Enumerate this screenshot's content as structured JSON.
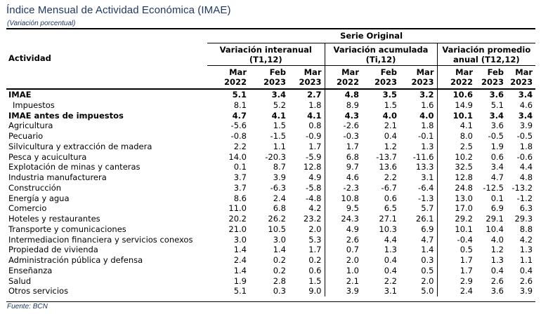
{
  "title": "Índice Mensual de Actividad Económica (IMAE)",
  "subtitle": "(Variación porcentual)",
  "source": "Fuente: BCN",
  "header": {
    "serie": "Serie Original",
    "actividad": "Actividad",
    "groups": [
      {
        "line1": "Variación interanual",
        "line2": "(T1,12)"
      },
      {
        "line1": "Variación acumulada",
        "line2": "(Ti,12)"
      },
      {
        "line1": "Variación promedio",
        "line2": "anual (T12,12)"
      }
    ],
    "periods": [
      {
        "m": "Mar",
        "y": "2022"
      },
      {
        "m": "Feb",
        "y": "2023"
      },
      {
        "m": "Mar",
        "y": "2023"
      },
      {
        "m": "Mar",
        "y": "2022"
      },
      {
        "m": "Feb",
        "y": "2023"
      },
      {
        "m": "Mar",
        "y": "2023"
      },
      {
        "m": "Mar",
        "y": "2022"
      },
      {
        "m": "Feb",
        "y": "2023"
      },
      {
        "m": "Mar",
        "y": "2023"
      }
    ]
  },
  "rows": [
    {
      "name": "IMAE",
      "bold": true,
      "indent": false,
      "values": [
        "5.1",
        "3.4",
        "2.7",
        "4.8",
        "3.5",
        "3.2",
        "10.6",
        "3.6",
        "3.4"
      ]
    },
    {
      "name": "Impuestos",
      "bold": false,
      "indent": true,
      "values": [
        "8.1",
        "5.2",
        "1.8",
        "8.9",
        "1.5",
        "1.6",
        "14.9",
        "5.1",
        "4.6"
      ]
    },
    {
      "name": "IMAE antes de impuestos",
      "bold": true,
      "indent": false,
      "values": [
        "4.7",
        "4.1",
        "4.1",
        "4.3",
        "4.0",
        "4.0",
        "10.1",
        "3.4",
        "3.4"
      ]
    },
    {
      "name": "Agricultura",
      "bold": false,
      "indent": false,
      "values": [
        "-5.6",
        "1.5",
        "0.8",
        "-2.6",
        "2.1",
        "1.8",
        "4.1",
        "3.6",
        "3.9"
      ]
    },
    {
      "name": "Pecuario",
      "bold": false,
      "indent": false,
      "values": [
        "-0.8",
        "-1.5",
        "-0.9",
        "-0.3",
        "0.4",
        "-0.1",
        "8.0",
        "-0.5",
        "-0.5"
      ]
    },
    {
      "name": "Silvicultura y extracción de madera",
      "bold": false,
      "indent": false,
      "values": [
        "2.2",
        "1.1",
        "1.7",
        "1.7",
        "1.2",
        "1.3",
        "2.5",
        "1.9",
        "1.8"
      ]
    },
    {
      "name": "Pesca y acuicultura",
      "bold": false,
      "indent": false,
      "values": [
        "14.0",
        "-20.3",
        "-5.9",
        "6.8",
        "-13.7",
        "-11.6",
        "10.2",
        "0.6",
        "-0.6"
      ]
    },
    {
      "name": "Explotación de minas y canteras",
      "bold": false,
      "indent": false,
      "values": [
        "0.1",
        "8.7",
        "12.8",
        "9.7",
        "13.6",
        "13.3",
        "32.5",
        "3.4",
        "4.4"
      ]
    },
    {
      "name": "Industria manufacturera",
      "bold": false,
      "indent": false,
      "values": [
        "3.7",
        "3.9",
        "4.9",
        "4.6",
        "2.2",
        "3.1",
        "12.8",
        "4.7",
        "4.8"
      ]
    },
    {
      "name": "Construcción",
      "bold": false,
      "indent": false,
      "values": [
        "3.7",
        "-6.3",
        "-5.8",
        "-2.3",
        "-6.7",
        "-6.4",
        "24.8",
        "-12.5",
        "-13.2"
      ]
    },
    {
      "name": "Energía y agua",
      "bold": false,
      "indent": false,
      "values": [
        "8.6",
        "2.4",
        "-4.8",
        "10.8",
        "0.6",
        "-1.3",
        "13.0",
        "0.1",
        "-1.2"
      ]
    },
    {
      "name": "Comercio",
      "bold": false,
      "indent": false,
      "values": [
        "11.0",
        "6.8",
        "4.2",
        "9.5",
        "6.5",
        "5.7",
        "17.0",
        "6.9",
        "6.3"
      ]
    },
    {
      "name": "Hoteles y restaurantes",
      "bold": false,
      "indent": false,
      "values": [
        "20.2",
        "26.2",
        "23.2",
        "24.3",
        "27.1",
        "26.1",
        "29.2",
        "29.1",
        "29.3"
      ]
    },
    {
      "name": "Transporte y comunicaciones",
      "bold": false,
      "indent": false,
      "values": [
        "21.0",
        "10.5",
        "2.0",
        "4.9",
        "10.3",
        "6.9",
        "10.1",
        "10.4",
        "8.8"
      ]
    },
    {
      "name": "Intermediacion financiera y servicios conexos",
      "bold": false,
      "indent": false,
      "values": [
        "3.0",
        "3.0",
        "5.3",
        "2.6",
        "4.4",
        "4.7",
        "-0.4",
        "4.0",
        "4.2"
      ]
    },
    {
      "name": "Propiedad de vivienda",
      "bold": false,
      "indent": false,
      "values": [
        "1.4",
        "1.4",
        "1.7",
        "0.7",
        "1.3",
        "1.4",
        "0.5",
        "1.2",
        "1.3"
      ]
    },
    {
      "name": "Administración pública y defensa",
      "bold": false,
      "indent": false,
      "values": [
        "2.4",
        "0.2",
        "0.2",
        "2.0",
        "0.4",
        "0.3",
        "1.7",
        "1.3",
        "1.1"
      ]
    },
    {
      "name": "Enseñanza",
      "bold": false,
      "indent": false,
      "values": [
        "1.4",
        "0.2",
        "0.6",
        "1.0",
        "0.4",
        "0.5",
        "1.7",
        "0.4",
        "0.4"
      ]
    },
    {
      "name": "Salud",
      "bold": false,
      "indent": false,
      "values": [
        "1.9",
        "2.8",
        "1.5",
        "2.1",
        "2.2",
        "2.0",
        "2.9",
        "2.6",
        "2.6"
      ]
    },
    {
      "name": "Otros servicios",
      "bold": false,
      "indent": false,
      "values": [
        "5.1",
        "0.3",
        "9.0",
        "3.9",
        "3.1",
        "5.0",
        "2.4",
        "3.6",
        "3.9"
      ]
    }
  ]
}
